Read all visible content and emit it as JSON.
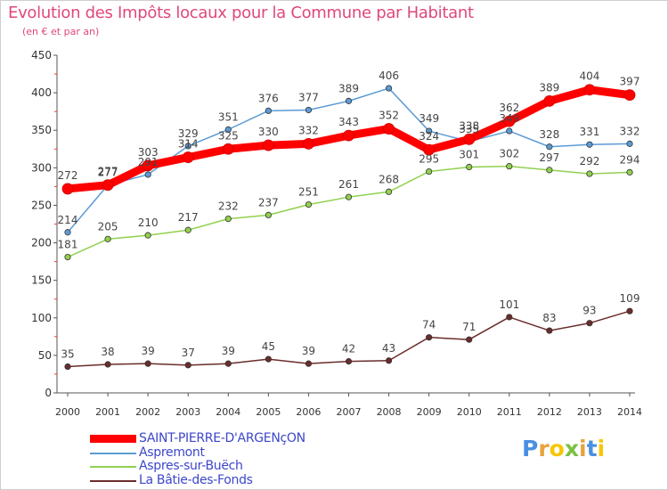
{
  "chart_data": {
    "type": "line",
    "title": "Evolution des Impôts locaux pour la Commune par Habitant",
    "subtitle": "(en € et par an)",
    "x": [
      "2000",
      "2001",
      "2002",
      "2003",
      "2004",
      "2005",
      "2006",
      "2007",
      "2008",
      "2009",
      "2010",
      "2011",
      "2012",
      "2013",
      "2014"
    ],
    "ylim": [
      0,
      450
    ],
    "yticks": [
      0,
      50,
      100,
      150,
      200,
      250,
      300,
      350,
      400,
      450
    ],
    "grid": false,
    "legend_position": "bottom-left",
    "series": [
      {
        "name": "SAINT-PIERRE-D'ARGENçON",
        "color": "#ff0000",
        "values": [
          272,
          277,
          303,
          314,
          325,
          330,
          332,
          343,
          352,
          324,
          338,
          362,
          389,
          404,
          397
        ]
      },
      {
        "name": "Aspremont",
        "color": "#5b9bd5",
        "values": [
          214,
          277,
          291,
          329,
          351,
          376,
          377,
          389,
          406,
          349,
          335,
          349,
          328,
          331,
          332
        ]
      },
      {
        "name": "Aspres-sur-Buëch",
        "color": "#92d050",
        "values": [
          181,
          205,
          210,
          217,
          232,
          237,
          251,
          261,
          268,
          295,
          301,
          302,
          297,
          292,
          294
        ]
      },
      {
        "name": "La Bâtie-des-Fonds",
        "color": "#6b2c2c",
        "values": [
          35,
          38,
          39,
          37,
          39,
          45,
          39,
          42,
          43,
          74,
          71,
          101,
          83,
          93,
          109
        ]
      }
    ]
  },
  "logo": {
    "letters": [
      "P",
      "r",
      "o",
      "x",
      "i",
      "t",
      "i"
    ],
    "colors": [
      "#4a90e2",
      "#e8a33d",
      "#f7c600",
      "#7ac143",
      "#e8a33d",
      "#4a90e2",
      "#f7c600"
    ]
  }
}
